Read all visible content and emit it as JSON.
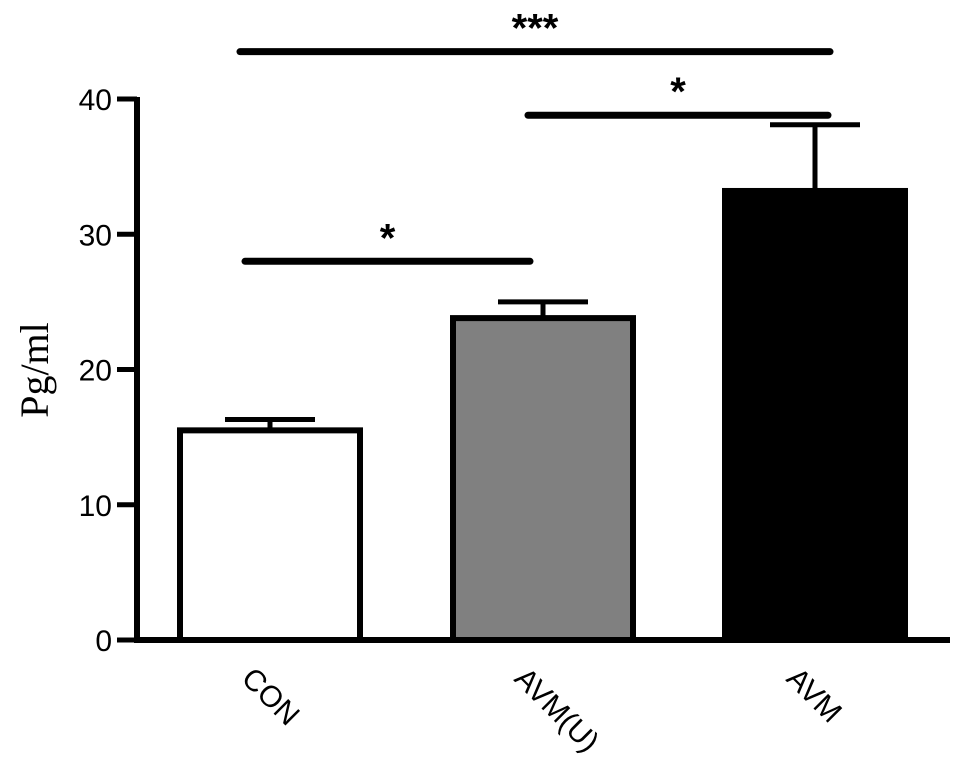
{
  "chart_data": {
    "type": "bar",
    "title": "",
    "xlabel": "",
    "ylabel": "Pg/ml",
    "ylim": [
      0,
      40
    ],
    "yticks": [
      "0",
      "10",
      "20",
      "30",
      "40"
    ],
    "categories": [
      "CON",
      "AVM(U)",
      "AVM"
    ],
    "values": [
      15.5,
      23.8,
      33.2
    ],
    "errors": [
      0.8,
      1.2,
      4.9
    ],
    "bar_colors": [
      "#ffffff",
      "#808080",
      "#000000"
    ],
    "grid": false,
    "significance": [
      {
        "from": "CON",
        "to": "AVM(U)",
        "label": "*",
        "y": 28
      },
      {
        "from": "AVM(U)",
        "to": "AVM",
        "label": "*",
        "y": 38.8
      },
      {
        "from": "CON",
        "to": "AVM",
        "label": "***",
        "y": 43.5
      }
    ]
  }
}
